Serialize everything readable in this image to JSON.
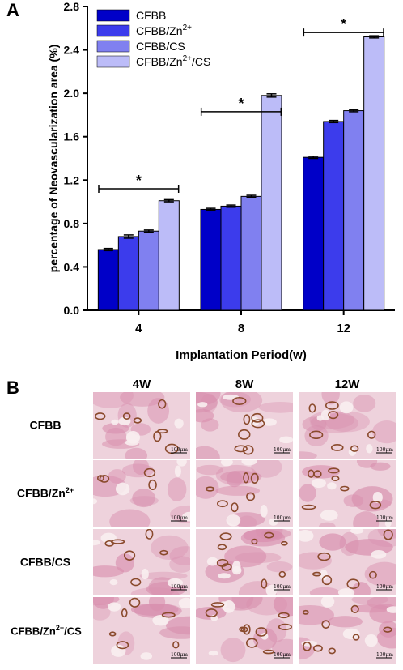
{
  "panel_a": {
    "letter": "A",
    "chart_data": {
      "type": "bar",
      "categories": [
        "4",
        "8",
        "12"
      ],
      "xlabel": "Implantation Period(w)",
      "ylabel": "percentage of Neovascularization area (%)",
      "ylim": [
        0,
        2.8
      ],
      "yticks": [
        "0.0",
        "0.4",
        "0.8",
        "1.2",
        "1.6",
        "2.0",
        "2.4",
        "2.8"
      ],
      "series": [
        {
          "name": "CFBB",
          "values": [
            0.56,
            0.93,
            1.41
          ],
          "errors": [
            0.01,
            0.01,
            0.01
          ],
          "color": "#0000c8"
        },
        {
          "name": "CFBB/Zn2+",
          "values": [
            0.68,
            0.96,
            1.74
          ],
          "errors": [
            0.015,
            0.01,
            0.01
          ],
          "color": "#3c3cec"
        },
        {
          "name": "CFBB/CS",
          "values": [
            0.73,
            1.05,
            1.84
          ],
          "errors": [
            0.01,
            0.01,
            0.01
          ],
          "color": "#8080f0"
        },
        {
          "name": "CFBB/Zn2+/CS",
          "values": [
            1.01,
            1.98,
            2.52
          ],
          "errors": [
            0.01,
            0.015,
            0.01
          ],
          "color": "#bcbcf8"
        }
      ],
      "significance": [
        {
          "category": "4",
          "label": "*",
          "y": 1.12
        },
        {
          "category": "8",
          "label": "*",
          "y": 1.83
        },
        {
          "category": "12",
          "label": "*",
          "y": 2.56
        }
      ],
      "legend": {
        "placement": "top-left",
        "entries": [
          {
            "base": "CFBB",
            "sup": "",
            "tail": ""
          },
          {
            "base": "CFBB/Zn",
            "sup": "2+",
            "tail": ""
          },
          {
            "base": "CFBB/CS",
            "sup": "",
            "tail": ""
          },
          {
            "base": "CFBB/Zn",
            "sup": "2+",
            "tail": "/CS"
          }
        ]
      }
    }
  },
  "panel_b": {
    "letter": "B",
    "columns": [
      "4W",
      "8W",
      "12W"
    ],
    "rows": [
      {
        "base": "CFBB",
        "sup": "",
        "tail": ""
      },
      {
        "base": "CFBB/Zn",
        "sup": "2+",
        "tail": ""
      },
      {
        "base": "CFBB/CS",
        "sup": "",
        "tail": ""
      },
      {
        "base": "CFBB/Zn",
        "sup": "2+",
        "tail": "/CS"
      }
    ],
    "scale_bar_label": "100μm",
    "tissue_colors": {
      "background": "#eed2dc",
      "stroma": "#d88fae",
      "vessel": "#8a4a2c",
      "lumen": "#f8eef0"
    }
  }
}
